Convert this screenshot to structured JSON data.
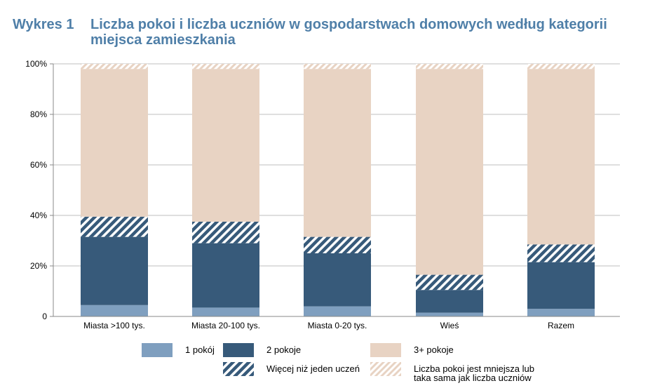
{
  "title": {
    "number": "Wykres 1",
    "text": "Liczba pokoi i liczba uczniów w gospodarstwach domowych według kategorii miejsca zamieszkania"
  },
  "colors": {
    "one_room": "#7f9fbf",
    "two_rooms": "#375a7a",
    "three_plus": "#e8d3c3",
    "hatch_dark_bg": "#ffffff",
    "hatch_dark_fg": "#375a7a",
    "hatch_light_fg": "#e8d3c3",
    "title": "#4f7fa8",
    "axis": "#888888",
    "grid": "#bfbfbf"
  },
  "legend": [
    {
      "key": "one_room",
      "label": "1 pokój",
      "pattern": "solid",
      "color": "#7f9fbf"
    },
    {
      "key": "two_rooms",
      "label": "2 pokoje",
      "pattern": "solid",
      "color": "#375a7a"
    },
    {
      "key": "three_plus",
      "label": "3+ pokoje",
      "pattern": "solid",
      "color": "#e8d3c3"
    },
    {
      "key": "more_than_one_student",
      "label": "Więcej niż jeden uczeń",
      "pattern": "hatch-dark"
    },
    {
      "key": "rooms_le_students",
      "label": "Liczba pokoi jest mniejsza lub\ntaka sama jak liczba uczniów",
      "pattern": "hatch-light"
    }
  ],
  "chart_data": {
    "type": "bar",
    "stacked": true,
    "categories": [
      "Miasta >100 tys.",
      "Miasta 20-100 tys.",
      "Miasta 0-20 tys.",
      "Wieś",
      "Razem"
    ],
    "ylim": [
      0,
      100
    ],
    "yticks": [
      "0",
      "20%",
      "40%",
      "60%",
      "80%",
      "100%"
    ],
    "grid": true,
    "legend_position": "bottom",
    "series": [
      {
        "name": "1 pokój",
        "pattern": "solid",
        "color": "#7f9fbf",
        "values": [
          4.5,
          3.5,
          4,
          1.5,
          3
        ]
      },
      {
        "name": "2 pokoje",
        "pattern": "solid",
        "color": "#375a7a",
        "values": [
          27,
          25.5,
          21,
          9,
          18.5
        ]
      },
      {
        "name": "Więcej niż jeden uczeń",
        "pattern": "hatch-dark",
        "values": [
          8,
          8.5,
          6.5,
          6,
          7
        ]
      },
      {
        "name": "3+ pokoje",
        "pattern": "solid",
        "color": "#e8d3c3",
        "values": [
          58.5,
          60.5,
          66.5,
          81.5,
          69.5
        ]
      },
      {
        "name": "Liczba pokoi jest mniejsza lub taka sama jak liczba uczniów",
        "pattern": "hatch-light",
        "values": [
          2,
          2,
          2,
          2,
          2
        ]
      }
    ]
  }
}
